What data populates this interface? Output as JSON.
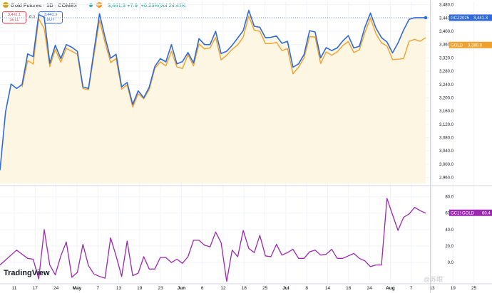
{
  "header": {
    "symbol": "Gold Futures · 1D · COMEX",
    "last": "3,441.3",
    "change": "+7.9 (+0.23%)",
    "volume": "Vol 24.43K",
    "d_badge": "D"
  },
  "trade": {
    "sell_price": "3,441.1",
    "sell_label": "SELL",
    "spread": "0.2",
    "buy_price": "3,441.3",
    "buy_label": "BUY"
  },
  "watermark": "TradingView",
  "weibo_mark": "@苏眼",
  "chart_data": [
    {
      "type": "line",
      "title": "Gold Futures 1D COMEX",
      "x_tick_labels": [
        "11",
        "17",
        "24",
        "May",
        "7",
        "13",
        "19",
        "23",
        "Jun",
        "6",
        "12",
        "18",
        "25",
        "Jul",
        "8",
        "14",
        "18",
        "24",
        "Aug",
        "7",
        "13",
        "19",
        "25"
      ],
      "y_ticks": [
        2960,
        3000,
        3040,
        3080,
        3120,
        3160,
        3200,
        3240,
        3280,
        3320,
        3360,
        3400,
        3440,
        3480
      ],
      "ylim": [
        2942,
        3490
      ],
      "series": [
        {
          "name": "GCZ2025",
          "color": "#2f6ad8",
          "last_label": "3,441.3",
          "values": [
            2982,
            3158,
            3241,
            3228,
            3240,
            3332,
            3324,
            3450,
            3443,
            3304,
            3358,
            3318,
            3360,
            3352,
            3340,
            3233,
            3228,
            3341,
            3453,
            3382,
            3319,
            3331,
            3233,
            3246,
            3180,
            3221,
            3200,
            3232,
            3294,
            3318,
            3308,
            3360,
            3302,
            3309,
            3336,
            3305,
            3378,
            3360,
            3360,
            3400,
            3333,
            3340,
            3358,
            3380,
            3402,
            3463,
            3415,
            3412,
            3381,
            3382,
            3386,
            3364,
            3370,
            3292,
            3302,
            3330,
            3402,
            3398,
            3320,
            3351,
            3342,
            3350,
            3371,
            3387,
            3350,
            3355,
            3412,
            3455,
            3410,
            3381,
            3368,
            3335,
            3365,
            3404,
            3436,
            3441,
            3441,
            3441
          ]
        },
        {
          "name": "GOLD",
          "color": "#f0a12d",
          "last_label": "3,380.9",
          "values": [
            null,
            null,
            null,
            null,
            3232,
            3312,
            3302,
            3438,
            3408,
            3294,
            3345,
            3307,
            3349,
            3340,
            3331,
            3228,
            3224,
            3328,
            3433,
            3366,
            3306,
            3318,
            3226,
            3239,
            3172,
            3212,
            3197,
            3225,
            3288,
            3308,
            3296,
            3340,
            3293,
            3288,
            3330,
            3296,
            3362,
            3347,
            3350,
            3382,
            3314,
            3328,
            3346,
            3359,
            3383,
            3446,
            3403,
            3400,
            3363,
            3363,
            3367,
            3342,
            3348,
            3272,
            3292,
            3320,
            3384,
            3383,
            3303,
            3338,
            3328,
            3338,
            3357,
            3369,
            3336,
            3344,
            3396,
            3440,
            3393,
            3365,
            3356,
            3315,
            3316,
            3318,
            3370,
            3376,
            3370,
            3381
          ]
        }
      ]
    },
    {
      "type": "line",
      "title": "GC1!-GOLD",
      "y_ticks": [
        0,
        20,
        40,
        60,
        80
      ],
      "ylim": [
        -25,
        90
      ],
      "series": [
        {
          "name": "GC1!-GOLD",
          "color": "#9c27b0",
          "last_label": "60.4",
          "values": [
            -3,
            3,
            9,
            15,
            10,
            5,
            4,
            -20,
            40,
            -3,
            -15,
            8,
            25,
            -18,
            -12,
            22,
            -4,
            -14,
            -17,
            -19,
            30,
            8,
            -17,
            26,
            -16,
            -13,
            7,
            -8,
            -8,
            6,
            6,
            0,
            4,
            -1,
            7,
            27,
            27,
            21,
            19,
            37,
            24,
            -23,
            15,
            7,
            39,
            17,
            12,
            33,
            8,
            7,
            22,
            9,
            12,
            16,
            5,
            5,
            13,
            15,
            9,
            10,
            16,
            5,
            5,
            8,
            11,
            5,
            2,
            -5,
            -3,
            -3,
            78,
            58,
            39,
            55,
            59,
            67,
            63,
            60
          ]
        }
      ]
    }
  ]
}
